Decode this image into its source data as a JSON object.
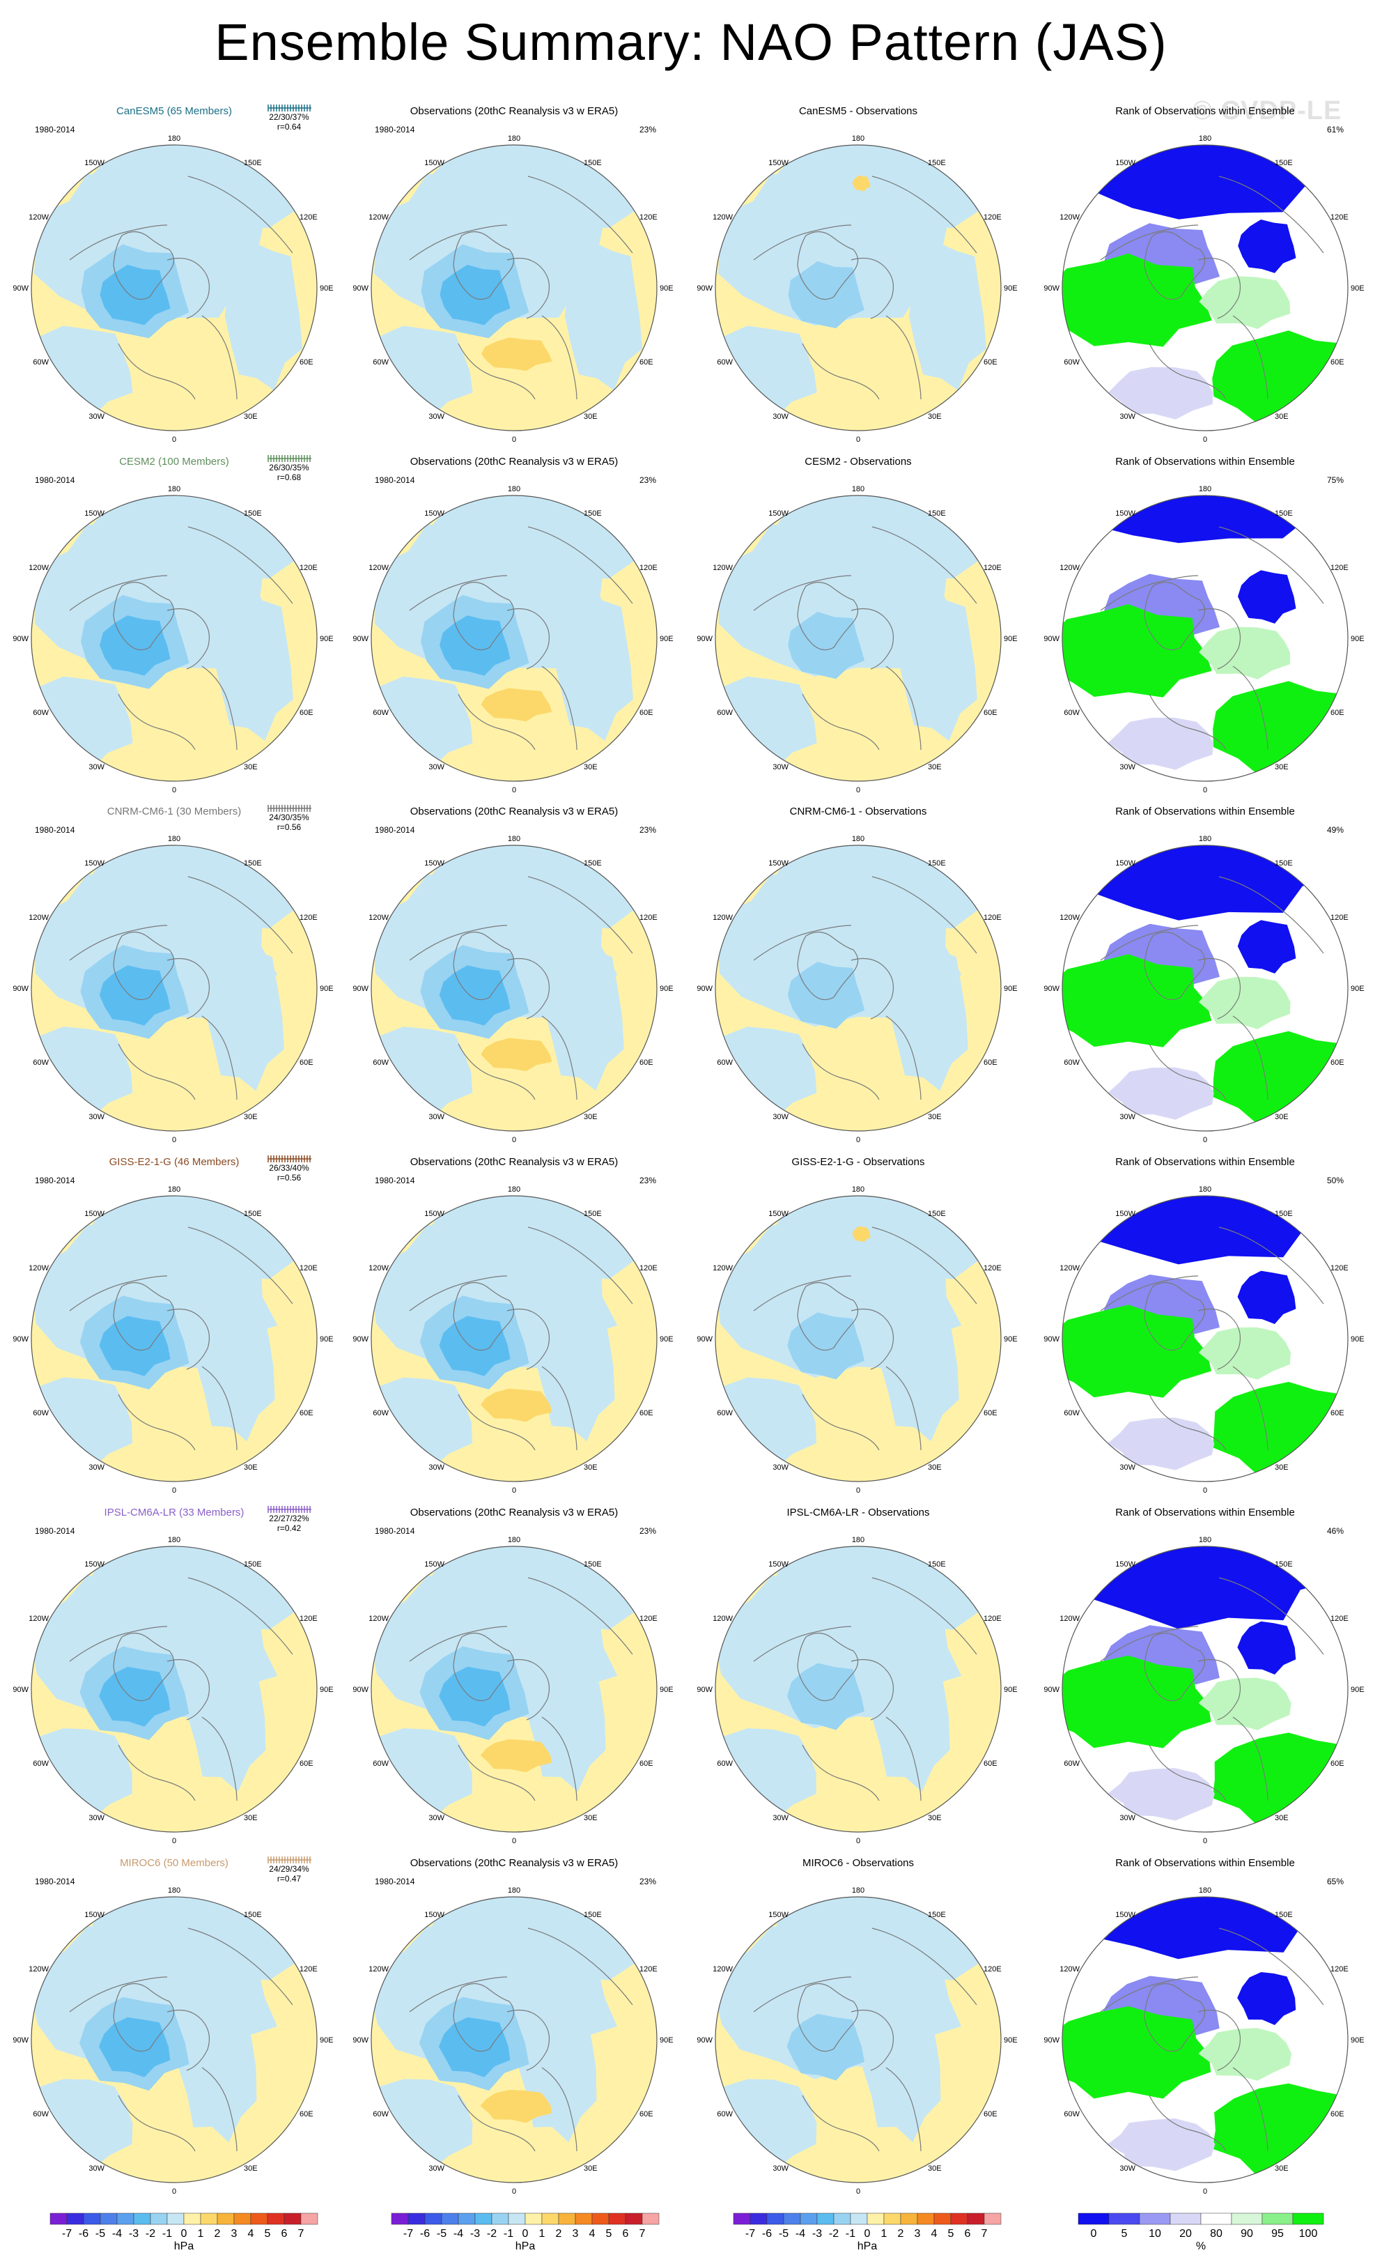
{
  "title": "Ensemble Summary: NAO Pattern (JAS)",
  "watermark": "© CVDP-LE",
  "period": "1980-2014",
  "obs_title": "Observations (20thC Reanalysis v3 w ERA5)",
  "obs_pct": "23%",
  "rank_title": "Rank of Observations within Ensemble",
  "diff_suffix": " - Observations",
  "lon_labels": {
    "top": "180",
    "bottom": "0",
    "l1": "150W",
    "l2": "120W",
    "l3": "90W",
    "l4": "60W",
    "l5": "30W",
    "r1": "150E",
    "r2": "120E",
    "r3": "90E",
    "r4": "60E",
    "r5": "30E"
  },
  "models": [
    {
      "name": "CanESM5 (65 Members)",
      "color": "#1a6f86",
      "stats": "22/30/37%",
      "r": "r=0.64",
      "rank_pct": "61%",
      "variant": 0,
      "diff_variant": 0,
      "rank_variant": 0
    },
    {
      "name": "CESM2 (100 Members)",
      "color": "#5e8e5c",
      "stats": "26/30/35%",
      "r": "r=0.68",
      "rank_pct": "75%",
      "variant": 1,
      "diff_variant": 1,
      "rank_variant": 1
    },
    {
      "name": "CNRM-CM6-1 (30 Members)",
      "color": "#777777",
      "stats": "24/30/35%",
      "r": "r=0.56",
      "rank_pct": "49%",
      "variant": 2,
      "diff_variant": 2,
      "rank_variant": 2
    },
    {
      "name": "GISS-E2-1-G (46 Members)",
      "color": "#8a4a22",
      "stats": "26/33/40%",
      "r": "r=0.56",
      "rank_pct": "50%",
      "variant": 3,
      "diff_variant": 3,
      "rank_variant": 3
    },
    {
      "name": "IPSL-CM6A-LR (33 Members)",
      "color": "#8a5fc9",
      "stats": "22/27/32%",
      "r": "r=0.42",
      "rank_pct": "46%",
      "variant": 4,
      "diff_variant": 4,
      "rank_variant": 4
    },
    {
      "name": "MIROC6 (50 Members)",
      "color": "#c79a6e",
      "stats": "24/29/34%",
      "r": "r=0.47",
      "rank_pct": "65%",
      "variant": 5,
      "diff_variant": 5,
      "rank_variant": 5
    }
  ],
  "colorbar_hpa": {
    "labels": [
      "-7",
      "-6",
      "-5",
      "-4",
      "-3",
      "-2",
      "-1",
      "0",
      "1",
      "2",
      "3",
      "4",
      "5",
      "6",
      "7"
    ],
    "colors": [
      "#7a1fd6",
      "#3a2de0",
      "#3b5be8",
      "#4d80ea",
      "#5aa0ee",
      "#5bbcf0",
      "#98d3f2",
      "#c6e6f4",
      "#fff2a8",
      "#fcd86a",
      "#f8b43a",
      "#f58a22",
      "#ee5a1a",
      "#e03222",
      "#c81f2a",
      "#f6a4a4"
    ],
    "unit": "hPa"
  },
  "colorbar_pct": {
    "labels": [
      "0",
      "5",
      "10",
      "20",
      "80",
      "90",
      "95",
      "100"
    ],
    "colors": [
      "#1010f0",
      "#4a4af0",
      "#9a9af4",
      "#d8d8f6",
      "#ffffff",
      "#d8f6d8",
      "#8af08a",
      "#10f010"
    ],
    "unit": "%"
  }
}
